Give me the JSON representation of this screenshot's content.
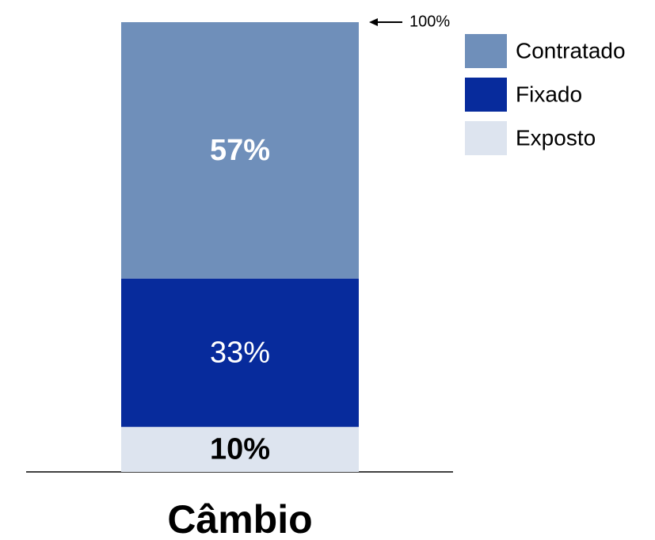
{
  "chart_data": {
    "type": "stacked_bar",
    "categories": [
      "Câmbio"
    ],
    "series": [
      {
        "name": "Exposto",
        "color": "#dde4ef",
        "values": [
          10
        ],
        "value_labels": [
          "10%"
        ]
      },
      {
        "name": "Fixado",
        "color": "#072b9c",
        "values": [
          33
        ],
        "value_labels": [
          "33%"
        ]
      },
      {
        "name": "Contratado",
        "color": "#6f8fba",
        "values": [
          57
        ],
        "value_labels": [
          "57%"
        ]
      }
    ],
    "annotation": {
      "value": 100,
      "label": "100%"
    }
  }
}
